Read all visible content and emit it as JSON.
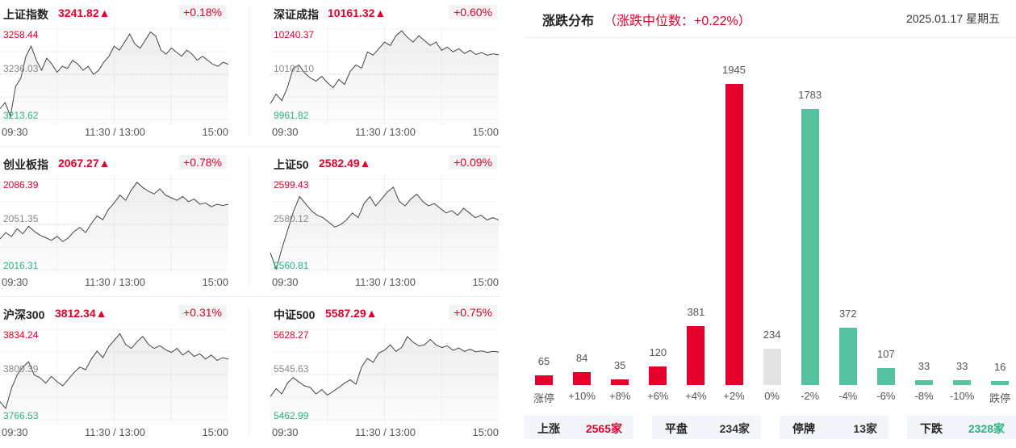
{
  "indices": [
    {
      "name": "上证指数",
      "value": "3241.82▲",
      "pct": "+0.18%",
      "high": "3258.44",
      "mid": "3236.03",
      "low": "3213.62",
      "hiv": 3258.44,
      "lov": 3213.62,
      "series": [
        3219,
        3222,
        3215,
        3230,
        3234,
        3245,
        3250,
        3243,
        3238,
        3244,
        3241,
        3237,
        3240,
        3239,
        3243,
        3241,
        3238,
        3240,
        3236,
        3238,
        3242,
        3245,
        3250,
        3248,
        3252,
        3256,
        3251,
        3249,
        3253,
        3257,
        3255,
        3248,
        3246,
        3249,
        3247,
        3245,
        3248,
        3246,
        3243,
        3245,
        3243,
        3241,
        3240,
        3242,
        3241
      ]
    },
    {
      "name": "深证成指",
      "value": "10161.32▲",
      "pct": "+0.60%",
      "high": "10240.37",
      "mid": "10101.10",
      "low": "9961.82",
      "hiv": 10240.37,
      "lov": 9961.82,
      "series": [
        10010,
        10040,
        10020,
        10060,
        10120,
        10130,
        10105,
        10090,
        10080,
        10095,
        10075,
        10060,
        10085,
        10070,
        10110,
        10130,
        10120,
        10170,
        10160,
        10180,
        10200,
        10190,
        10220,
        10235,
        10215,
        10200,
        10220,
        10205,
        10190,
        10200,
        10175,
        10185,
        10170,
        10180,
        10165,
        10175,
        10162,
        10168,
        10160,
        10164,
        10161
      ]
    },
    {
      "name": "创业板指",
      "value": "2067.27▲",
      "pct": "+0.78%",
      "high": "2086.39",
      "mid": "2051.35",
      "low": "2016.31",
      "hiv": 2086.39,
      "lov": 2016.31,
      "series": [
        2040,
        2045,
        2042,
        2048,
        2044,
        2050,
        2046,
        2043,
        2041,
        2039,
        2042,
        2038,
        2041,
        2046,
        2049,
        2045,
        2052,
        2058,
        2055,
        2063,
        2068,
        2074,
        2070,
        2078,
        2084,
        2080,
        2077,
        2075,
        2079,
        2074,
        2072,
        2070,
        2073,
        2069,
        2071,
        2067,
        2068,
        2065,
        2067,
        2066,
        2067
      ]
    },
    {
      "name": "上证50",
      "value": "2582.49▲",
      "pct": "+0.09%",
      "high": "2599.43",
      "mid": "2580.12",
      "low": "2560.81",
      "hiv": 2599.43,
      "lov": 2560.81,
      "series": [
        2568,
        2561,
        2570,
        2578,
        2586,
        2592,
        2589,
        2586,
        2584,
        2583,
        2581,
        2579,
        2580,
        2582,
        2585,
        2583,
        2589,
        2592,
        2588,
        2591,
        2594,
        2596,
        2590,
        2588,
        2591,
        2593,
        2590,
        2588,
        2589,
        2587,
        2585,
        2586,
        2584,
        2587,
        2585,
        2583,
        2584,
        2582,
        2583,
        2582
      ]
    },
    {
      "name": "沪深300",
      "value": "3812.34▲",
      "pct": "+0.31%",
      "high": "3834.24",
      "mid": "3800.39",
      "low": "3766.53",
      "hiv": 3834.24,
      "lov": 3766.53,
      "series": [
        3780,
        3775,
        3790,
        3800,
        3806,
        3810,
        3800,
        3798,
        3794,
        3799,
        3795,
        3792,
        3797,
        3802,
        3806,
        3804,
        3812,
        3818,
        3813,
        3821,
        3826,
        3831,
        3823,
        3820,
        3825,
        3829,
        3823,
        3820,
        3822,
        3819,
        3817,
        3820,
        3815,
        3818,
        3814,
        3816,
        3812,
        3815,
        3811,
        3813,
        3812
      ]
    },
    {
      "name": "中证500",
      "value": "5587.29▲",
      "pct": "+0.75%",
      "high": "5628.27",
      "mid": "5545.63",
      "low": "5462.99",
      "hiv": 5628.27,
      "lov": 5462.99,
      "series": [
        5505,
        5520,
        5510,
        5530,
        5540,
        5532,
        5525,
        5522,
        5510,
        5518,
        5508,
        5515,
        5522,
        5530,
        5536,
        5528,
        5560,
        5575,
        5568,
        5585,
        5590,
        5600,
        5588,
        5595,
        5615,
        5605,
        5598,
        5600,
        5610,
        5600,
        5595,
        5598,
        5590,
        5594,
        5588,
        5592,
        5587,
        5589,
        5586,
        5588,
        5587
      ]
    }
  ],
  "time_labels": {
    "start": "09:30",
    "mid": "11:30 / 13:00",
    "end": "15:00"
  },
  "distribution": {
    "title": "涨跌分布",
    "subtitle": "（涨跌中位数：+0.22%）",
    "date": "2025.01.17 星期五",
    "bars": [
      {
        "cat": "涨停",
        "value": 65,
        "color": "#e4002b"
      },
      {
        "cat": "+10%",
        "value": 84,
        "color": "#e4002b"
      },
      {
        "cat": "+8%",
        "value": 35,
        "color": "#e4002b"
      },
      {
        "cat": "+6%",
        "value": 120,
        "color": "#e4002b"
      },
      {
        "cat": "+4%",
        "value": 381,
        "color": "#e4002b"
      },
      {
        "cat": "+2%",
        "value": 1945,
        "color": "#e4002b"
      },
      {
        "cat": "0%",
        "value": 234,
        "color": "#e3e3e3"
      },
      {
        "cat": "-2%",
        "value": 1783,
        "color": "#55c3a0"
      },
      {
        "cat": "-4%",
        "value": 372,
        "color": "#55c3a0"
      },
      {
        "cat": "-6%",
        "value": 107,
        "color": "#55c3a0"
      },
      {
        "cat": "-8%",
        "value": 33,
        "color": "#55c3a0"
      },
      {
        "cat": "-10%",
        "value": 33,
        "color": "#55c3a0"
      },
      {
        "cat": "跌停",
        "value": 16,
        "color": "#55c3a0"
      }
    ],
    "summary": [
      {
        "label": "上涨",
        "value": "2565家",
        "color": "#e4002b"
      },
      {
        "label": "平盘",
        "value": "234家",
        "color": "#333333"
      },
      {
        "label": "停牌",
        "value": "13家",
        "color": "#333333"
      },
      {
        "label": "下跌",
        "value": "2328家",
        "color": "#2bb382"
      }
    ]
  }
}
